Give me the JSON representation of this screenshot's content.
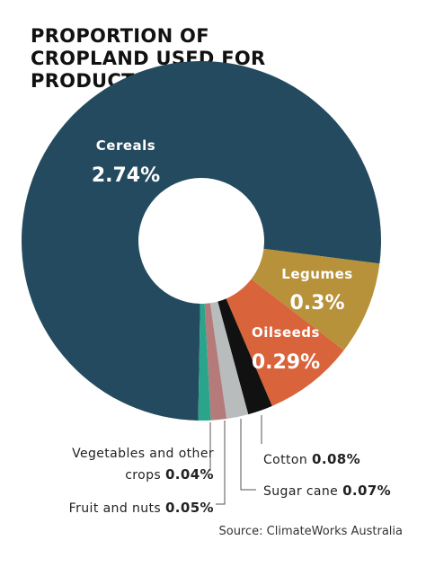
{
  "chart_data": {
    "type": "donut",
    "title": "PROPORTION OF CROPLAND USED FOR PRODUCTION",
    "categories": [
      "Cereals",
      "Legumes",
      "Oilseeds",
      "Cotton",
      "Sugar cane",
      "Fruit and nuts",
      "Vegetables and other crops"
    ],
    "values": [
      2.74,
      0.3,
      0.29,
      0.08,
      0.07,
      0.05,
      0.04
    ],
    "value_labels": [
      "2.74%",
      "0.3%",
      "0.29%",
      "0.08%",
      "0.07%",
      "0.05%",
      "0.04%"
    ],
    "colors": [
      "#234a5e",
      "#b8923a",
      "#d9633a",
      "#111111",
      "#b9bcbd",
      "#b57a7a",
      "#2aa58c"
    ],
    "source": "Source: ClimateWorks Australia"
  }
}
